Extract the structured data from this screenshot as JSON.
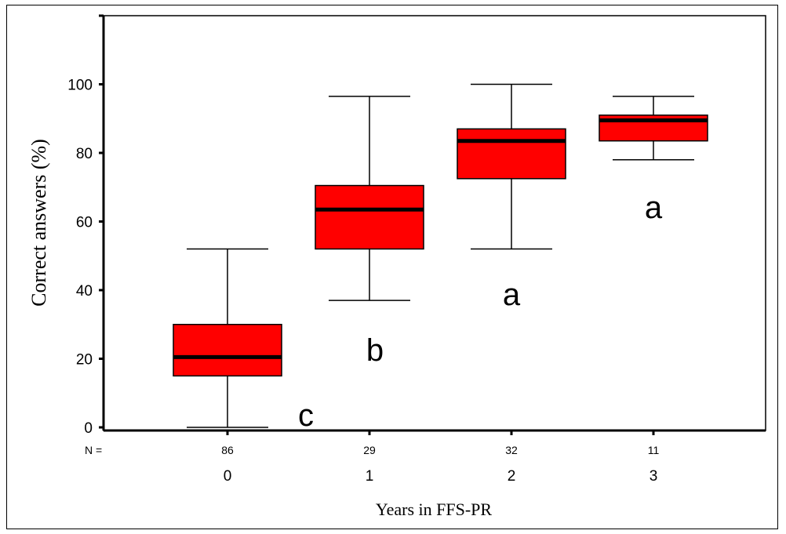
{
  "chart_data": {
    "type": "box",
    "title": "",
    "xlabel": "Years in FFS-PR",
    "ylabel": "Correct answers (%)",
    "ylim": [
      0,
      100
    ],
    "yticks": [
      0,
      20,
      40,
      60,
      80,
      100
    ],
    "n_prefix": "N =",
    "box_color": "#ff0000",
    "grid": false,
    "groups": [
      {
        "category": "0",
        "n": "86",
        "letter": "c",
        "min": 0,
        "q1": 15,
        "median": 20.5,
        "q3": 30,
        "max": 52
      },
      {
        "category": "1",
        "n": "29",
        "letter": "b",
        "min": 37,
        "q1": 52,
        "median": 63.5,
        "q3": 70.5,
        "max": 96.5
      },
      {
        "category": "2",
        "n": "32",
        "letter": "a",
        "min": 52,
        "q1": 72.5,
        "median": 83.5,
        "q3": 87,
        "max": 100
      },
      {
        "category": "3",
        "n": "11",
        "letter": "a",
        "min": 78,
        "q1": 83.5,
        "median": 89.5,
        "q3": 91,
        "max": 96.5
      }
    ]
  }
}
